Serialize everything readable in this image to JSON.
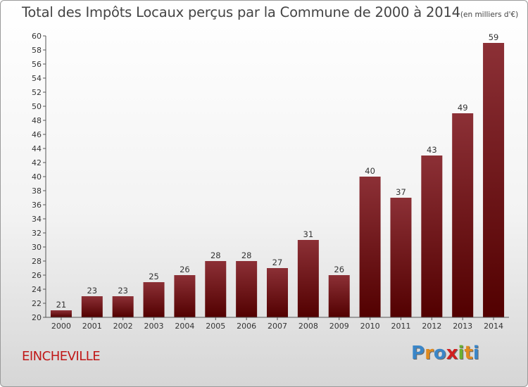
{
  "title": "Total des Impôts Locaux perçus par la Commune de 2000 à 2014",
  "title_unit": "(en milliers d'€)",
  "commune": "EINCHEVILLE",
  "logo": [
    "P",
    "r",
    "o",
    "x",
    "i",
    "t",
    "i"
  ],
  "logo_colors": [
    "#3a86c8",
    "#e08a1e",
    "#3a86c8",
    "#d02020",
    "#6ab030",
    "#e08a1e",
    "#3a86c8"
  ],
  "colors": {
    "bar_top": "#8c3036",
    "bar_bottom": "#520000",
    "title": "#444444",
    "commune": "#c01818"
  },
  "chart_data": {
    "type": "bar",
    "categories": [
      "2000",
      "2001",
      "2002",
      "2003",
      "2004",
      "2005",
      "2006",
      "2007",
      "2008",
      "2009",
      "2010",
      "2011",
      "2012",
      "2013",
      "2014"
    ],
    "values": [
      21,
      23,
      23,
      25,
      26,
      28,
      28,
      27,
      31,
      26,
      40,
      37,
      43,
      49,
      59
    ],
    "ylim": [
      20,
      60
    ],
    "yticks": [
      20,
      22,
      24,
      26,
      28,
      30,
      32,
      34,
      36,
      38,
      40,
      42,
      44,
      46,
      48,
      50,
      52,
      54,
      56,
      58,
      60
    ],
    "grid": false,
    "legend": "none"
  }
}
